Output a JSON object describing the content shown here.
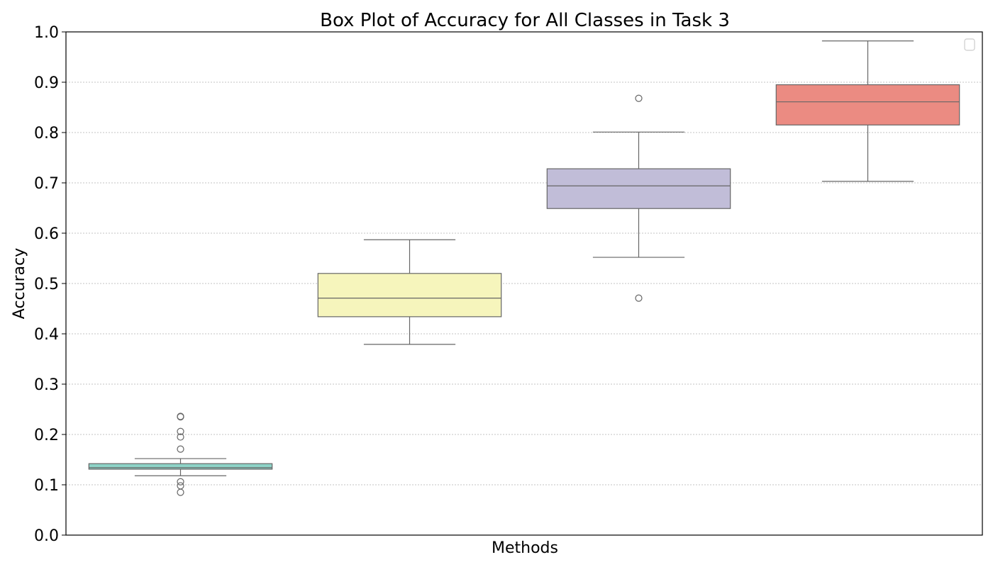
{
  "chart_data": {
    "type": "box",
    "title": "Box Plot of Accuracy for All Classes in Task 3",
    "xlabel": "Methods",
    "ylabel": "Accuracy",
    "ylim": [
      0.0,
      1.0
    ],
    "yticks": [
      "0.0",
      "0.1",
      "0.2",
      "0.3",
      "0.4",
      "0.5",
      "0.6",
      "0.7",
      "0.8",
      "0.9",
      "1.0"
    ],
    "ytick_values": [
      0.0,
      0.1,
      0.2,
      0.3,
      0.4,
      0.5,
      0.6,
      0.7,
      0.8,
      0.9,
      1.0
    ],
    "grid": "horizontal dotted",
    "legend": "top-right (empty)",
    "series": [
      {
        "color": "#8dd3c7",
        "whisker_low": 0.118,
        "q1": 0.131,
        "median": 0.134,
        "q3": 0.142,
        "whisker_high": 0.152,
        "outliers": [
          0.235,
          0.236,
          0.206,
          0.195,
          0.171,
          0.106,
          0.098,
          0.085
        ]
      },
      {
        "color": "#f6f5bc",
        "whisker_low": 0.379,
        "q1": 0.434,
        "median": 0.471,
        "q3": 0.52,
        "whisker_high": 0.587,
        "outliers": []
      },
      {
        "color": "#c1bdd8",
        "whisker_low": 0.552,
        "q1": 0.649,
        "median": 0.694,
        "q3": 0.728,
        "whisker_high": 0.801,
        "outliers": [
          0.868,
          0.471
        ]
      },
      {
        "color": "#eb8b82",
        "whisker_low": 0.703,
        "q1": 0.815,
        "median": 0.861,
        "q3": 0.895,
        "whisker_high": 0.982,
        "outliers": []
      }
    ]
  }
}
